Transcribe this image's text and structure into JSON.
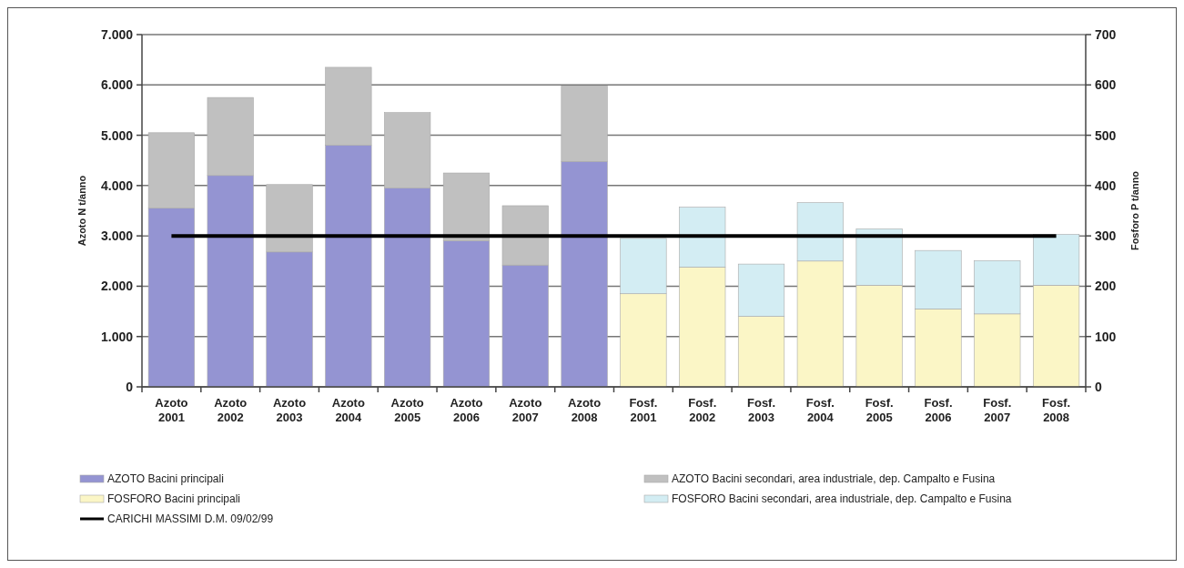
{
  "chart_data": {
    "type": "bar",
    "stacked": true,
    "ylabel": "Azoto N t/anno",
    "y2label": "Fosforo P t/anno",
    "categories": [
      "Azoto 2001",
      "Azoto 2002",
      "Azoto 2003",
      "Azoto 2004",
      "Azoto 2005",
      "Azoto 2006",
      "Azoto 2007",
      "Azoto 2008",
      "Fosf. 2001",
      "Fosf. 2002",
      "Fosf. 2003",
      "Fosf. 2004",
      "Fosf. 2005",
      "Fosf. 2006",
      "Fosf. 2007",
      "Fosf. 2008"
    ],
    "series": [
      {
        "name": "AZOTO  Bacini principali",
        "color": "#9494d2",
        "values": [
          3550,
          4200,
          2680,
          4800,
          3950,
          2900,
          2420,
          4480,
          null,
          null,
          null,
          null,
          null,
          null,
          null,
          null
        ]
      },
      {
        "name": "AZOTO  Bacini secondari, area industriale, dep. Campalto e Fusina",
        "color": "#c0c0c0",
        "values": [
          1500,
          1550,
          1340,
          1550,
          1500,
          1350,
          1180,
          1500,
          null,
          null,
          null,
          null,
          null,
          null,
          null,
          null
        ]
      },
      {
        "name": "FOSFORO  Bacini principali",
        "color": "#fbf6c6",
        "axis": "y2",
        "values": [
          null,
          null,
          null,
          null,
          null,
          null,
          null,
          null,
          185,
          238,
          140,
          250,
          202,
          155,
          145,
          202
        ]
      },
      {
        "name": "FOSFORO  Bacini secondari, area industriale, dep. Campalto e Fusina",
        "color": "#d3edf3",
        "axis": "y2",
        "values": [
          null,
          null,
          null,
          null,
          null,
          null,
          null,
          null,
          110,
          119,
          104,
          116,
          112,
          116,
          106,
          101
        ]
      },
      {
        "name": "CARICHI MASSIMI D.M. 09/02/99",
        "type": "line",
        "color": "#000000",
        "marker": "none",
        "line_style": "solid",
        "values": [
          3000,
          3000,
          3000,
          3000,
          3000,
          3000,
          3000,
          3000,
          3000,
          3000,
          3000,
          3000,
          3000,
          3000,
          3000,
          3000
        ]
      }
    ],
    "ylim": [
      0,
      7000
    ],
    "yticks": [
      {
        "value": 0,
        "label": "0"
      },
      {
        "value": 1000,
        "label": "1.000"
      },
      {
        "value": 2000,
        "label": "2.000"
      },
      {
        "value": 3000,
        "label": "3.000"
      },
      {
        "value": 4000,
        "label": "4.000"
      },
      {
        "value": 5000,
        "label": "5.000"
      },
      {
        "value": 6000,
        "label": "6.000"
      },
      {
        "value": 7000,
        "label": "7.000"
      }
    ],
    "y2lim": [
      0,
      700
    ],
    "y2ticks": [
      0,
      100,
      200,
      300,
      400,
      500,
      600,
      700
    ],
    "grid": "y",
    "legend": "bottom"
  }
}
